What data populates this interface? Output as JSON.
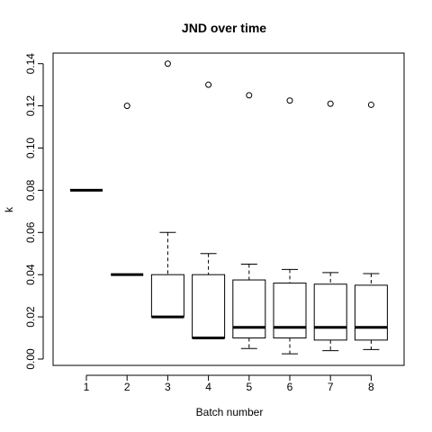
{
  "chart_data": {
    "type": "boxplot",
    "title": "JND over time",
    "xlabel": "Batch number",
    "ylabel": "k",
    "categories": [
      "1",
      "2",
      "3",
      "4",
      "5",
      "6",
      "7",
      "8"
    ],
    "ylim": [
      -0.003,
      0.145
    ],
    "yticks": [
      "0.00",
      "0.02",
      "0.04",
      "0.06",
      "0.08",
      "0.10",
      "0.12",
      "0.14"
    ],
    "grid": false,
    "boxes": [
      {
        "category": "1",
        "min": 0.08,
        "q1": 0.08,
        "median": 0.08,
        "q3": 0.08,
        "max": 0.08,
        "outliers": []
      },
      {
        "category": "2",
        "min": 0.04,
        "q1": 0.04,
        "median": 0.04,
        "q3": 0.04,
        "max": 0.04,
        "outliers": [
          0.12
        ]
      },
      {
        "category": "3",
        "min": 0.02,
        "q1": 0.02,
        "median": 0.02,
        "q3": 0.04,
        "max": 0.06,
        "outliers": [
          0.14
        ]
      },
      {
        "category": "4",
        "min": 0.01,
        "q1": 0.01,
        "median": 0.01,
        "q3": 0.04,
        "max": 0.05,
        "outliers": [
          0.13
        ]
      },
      {
        "category": "5",
        "min": 0.005,
        "q1": 0.01,
        "median": 0.015,
        "q3": 0.0375,
        "max": 0.045,
        "outliers": [
          0.125
        ]
      },
      {
        "category": "6",
        "min": 0.0025,
        "q1": 0.01,
        "median": 0.015,
        "q3": 0.036,
        "max": 0.0425,
        "outliers": [
          0.1225
        ]
      },
      {
        "category": "7",
        "min": 0.004,
        "q1": 0.009,
        "median": 0.015,
        "q3": 0.0355,
        "max": 0.041,
        "outliers": [
          0.121
        ]
      },
      {
        "category": "8",
        "min": 0.0045,
        "q1": 0.009,
        "median": 0.015,
        "q3": 0.035,
        "max": 0.0405,
        "outliers": [
          0.1205
        ]
      }
    ]
  }
}
